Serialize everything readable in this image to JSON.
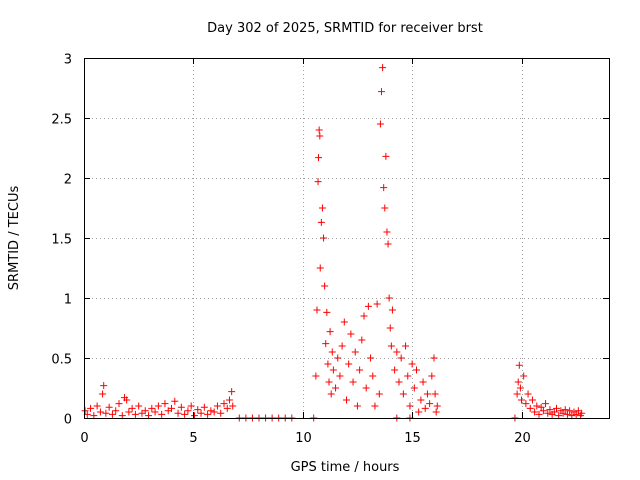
{
  "chart_data": {
    "type": "scatter",
    "title": "Day 302 of 2025, SRMTID for receiver brst",
    "xlabel": "GPS time / hours",
    "ylabel": "SRMTID / TECUs",
    "xlim": [
      0,
      24
    ],
    "ylim": [
      0,
      3
    ],
    "xticks": [
      0,
      5,
      10,
      15,
      20
    ],
    "xtick_labels": [
      "0",
      "5",
      "10",
      "15",
      "20"
    ],
    "yticks": [
      0,
      0.5,
      1,
      1.5,
      2,
      2.5,
      3
    ],
    "ytick_labels": [
      "0",
      "0.5",
      "1",
      "1.5",
      "2",
      "2.5",
      "3"
    ],
    "grid": true,
    "marker": "+",
    "color": "#ff0000",
    "series": [
      {
        "name": "brst",
        "points": [
          [
            0.05,
            0.06
          ],
          [
            0.15,
            0.03
          ],
          [
            0.3,
            0.08
          ],
          [
            0.45,
            0.02
          ],
          [
            0.6,
            0.1
          ],
          [
            0.75,
            0.05
          ],
          [
            0.85,
            0.2
          ],
          [
            0.9,
            0.27
          ],
          [
            1.0,
            0.04
          ],
          [
            1.15,
            0.09
          ],
          [
            1.3,
            0.03
          ],
          [
            1.45,
            0.06
          ],
          [
            1.6,
            0.12
          ],
          [
            1.75,
            0.02
          ],
          [
            1.85,
            0.17
          ],
          [
            1.95,
            0.15
          ],
          [
            2.05,
            0.05
          ],
          [
            2.2,
            0.08
          ],
          [
            2.35,
            0.03
          ],
          [
            2.5,
            0.1
          ],
          [
            2.65,
            0.04
          ],
          [
            2.8,
            0.06
          ],
          [
            2.95,
            0.02
          ],
          [
            3.1,
            0.08
          ],
          [
            3.25,
            0.05
          ],
          [
            3.4,
            0.1
          ],
          [
            3.55,
            0.03
          ],
          [
            3.7,
            0.12
          ],
          [
            3.85,
            0.06
          ],
          [
            4.0,
            0.08
          ],
          [
            4.15,
            0.14
          ],
          [
            4.3,
            0.04
          ],
          [
            4.45,
            0.09
          ],
          [
            4.6,
            0.03
          ],
          [
            4.75,
            0.06
          ],
          [
            4.9,
            0.1
          ],
          [
            5.05,
            0.02
          ],
          [
            5.2,
            0.07
          ],
          [
            5.35,
            0.04
          ],
          [
            5.5,
            0.09
          ],
          [
            5.65,
            0.03
          ],
          [
            5.8,
            0.06
          ],
          [
            5.95,
            0.05
          ],
          [
            6.1,
            0.1
          ],
          [
            6.25,
            0.04
          ],
          [
            6.4,
            0.12
          ],
          [
            6.55,
            0.08
          ],
          [
            6.65,
            0.15
          ],
          [
            6.75,
            0.22
          ],
          [
            6.8,
            0.1
          ],
          [
            7.1,
            0.0
          ],
          [
            7.4,
            0.0
          ],
          [
            7.7,
            0.0
          ],
          [
            8.0,
            0.0
          ],
          [
            8.3,
            0.0
          ],
          [
            8.6,
            0.0
          ],
          [
            8.9,
            0.0
          ],
          [
            9.2,
            0.0
          ],
          [
            9.5,
            0.0
          ],
          [
            10.5,
            0.0
          ],
          [
            10.6,
            0.35
          ],
          [
            10.65,
            0.9
          ],
          [
            10.7,
            1.97
          ],
          [
            10.72,
            2.17
          ],
          [
            10.75,
            2.4
          ],
          [
            10.78,
            2.35
          ],
          [
            10.8,
            1.25
          ],
          [
            10.85,
            1.63
          ],
          [
            10.9,
            1.75
          ],
          [
            10.95,
            1.5
          ],
          [
            11.0,
            1.1
          ],
          [
            11.05,
            0.62
          ],
          [
            11.1,
            0.88
          ],
          [
            11.15,
            0.45
          ],
          [
            11.2,
            0.3
          ],
          [
            11.25,
            0.72
          ],
          [
            11.3,
            0.2
          ],
          [
            11.35,
            0.55
          ],
          [
            11.4,
            0.4
          ],
          [
            11.5,
            0.25
          ],
          [
            11.6,
            0.5
          ],
          [
            11.7,
            0.35
          ],
          [
            11.8,
            0.6
          ],
          [
            11.9,
            0.8
          ],
          [
            12.0,
            0.15
          ],
          [
            12.1,
            0.45
          ],
          [
            12.2,
            0.7
          ],
          [
            12.3,
            0.3
          ],
          [
            12.4,
            0.55
          ],
          [
            12.5,
            0.1
          ],
          [
            12.6,
            0.4
          ],
          [
            12.7,
            0.65
          ],
          [
            12.8,
            0.85
          ],
          [
            12.9,
            0.25
          ],
          [
            13.0,
            0.93
          ],
          [
            13.1,
            0.5
          ],
          [
            13.2,
            0.35
          ],
          [
            13.3,
            0.1
          ],
          [
            13.4,
            0.95
          ],
          [
            13.5,
            0.2
          ],
          [
            13.55,
            2.45
          ],
          [
            13.6,
            2.72
          ],
          [
            13.65,
            2.92
          ],
          [
            13.7,
            1.92
          ],
          [
            13.75,
            1.75
          ],
          [
            13.8,
            2.18
          ],
          [
            13.85,
            1.55
          ],
          [
            13.9,
            1.45
          ],
          [
            13.95,
            1.0
          ],
          [
            14.0,
            0.75
          ],
          [
            14.05,
            0.6
          ],
          [
            14.1,
            0.9
          ],
          [
            14.2,
            0.4
          ],
          [
            14.3,
            0.55
          ],
          [
            14.4,
            0.3
          ],
          [
            14.5,
            0.5
          ],
          [
            14.6,
            0.2
          ],
          [
            14.7,
            0.6
          ],
          [
            14.8,
            0.35
          ],
          [
            14.9,
            0.1
          ],
          [
            15.0,
            0.45
          ],
          [
            15.1,
            0.25
          ],
          [
            15.2,
            0.4
          ],
          [
            15.3,
            0.05
          ],
          [
            15.4,
            0.15
          ],
          [
            15.5,
            0.3
          ],
          [
            15.6,
            0.08
          ],
          [
            15.7,
            0.2
          ],
          [
            15.8,
            0.12
          ],
          [
            15.9,
            0.35
          ],
          [
            16.0,
            0.5
          ],
          [
            16.05,
            0.2
          ],
          [
            16.1,
            0.05
          ],
          [
            16.15,
            0.1
          ],
          [
            14.3,
            0.0
          ],
          [
            14.9,
            0.0
          ],
          [
            19.7,
            0.0
          ],
          [
            19.8,
            0.2
          ],
          [
            19.85,
            0.3
          ],
          [
            19.9,
            0.44
          ],
          [
            19.95,
            0.25
          ],
          [
            20.0,
            0.15
          ],
          [
            20.1,
            0.35
          ],
          [
            20.2,
            0.12
          ],
          [
            20.3,
            0.2
          ],
          [
            20.4,
            0.08
          ],
          [
            20.5,
            0.15
          ],
          [
            20.6,
            0.05
          ],
          [
            20.7,
            0.1
          ],
          [
            20.8,
            0.03
          ],
          [
            20.9,
            0.09
          ],
          [
            21.0,
            0.06
          ],
          [
            21.1,
            0.12
          ],
          [
            21.2,
            0.04
          ],
          [
            21.3,
            0.07
          ],
          [
            21.4,
            0.03
          ],
          [
            21.5,
            0.05
          ],
          [
            21.6,
            0.08
          ],
          [
            21.7,
            0.02
          ],
          [
            21.8,
            0.06
          ],
          [
            21.9,
            0.04
          ],
          [
            22.0,
            0.07
          ],
          [
            22.1,
            0.03
          ],
          [
            22.2,
            0.06
          ],
          [
            22.3,
            0.02
          ],
          [
            22.4,
            0.05
          ],
          [
            22.5,
            0.03
          ],
          [
            22.6,
            0.06
          ],
          [
            22.7,
            0.02
          ],
          [
            22.75,
            0.04
          ]
        ]
      }
    ]
  }
}
